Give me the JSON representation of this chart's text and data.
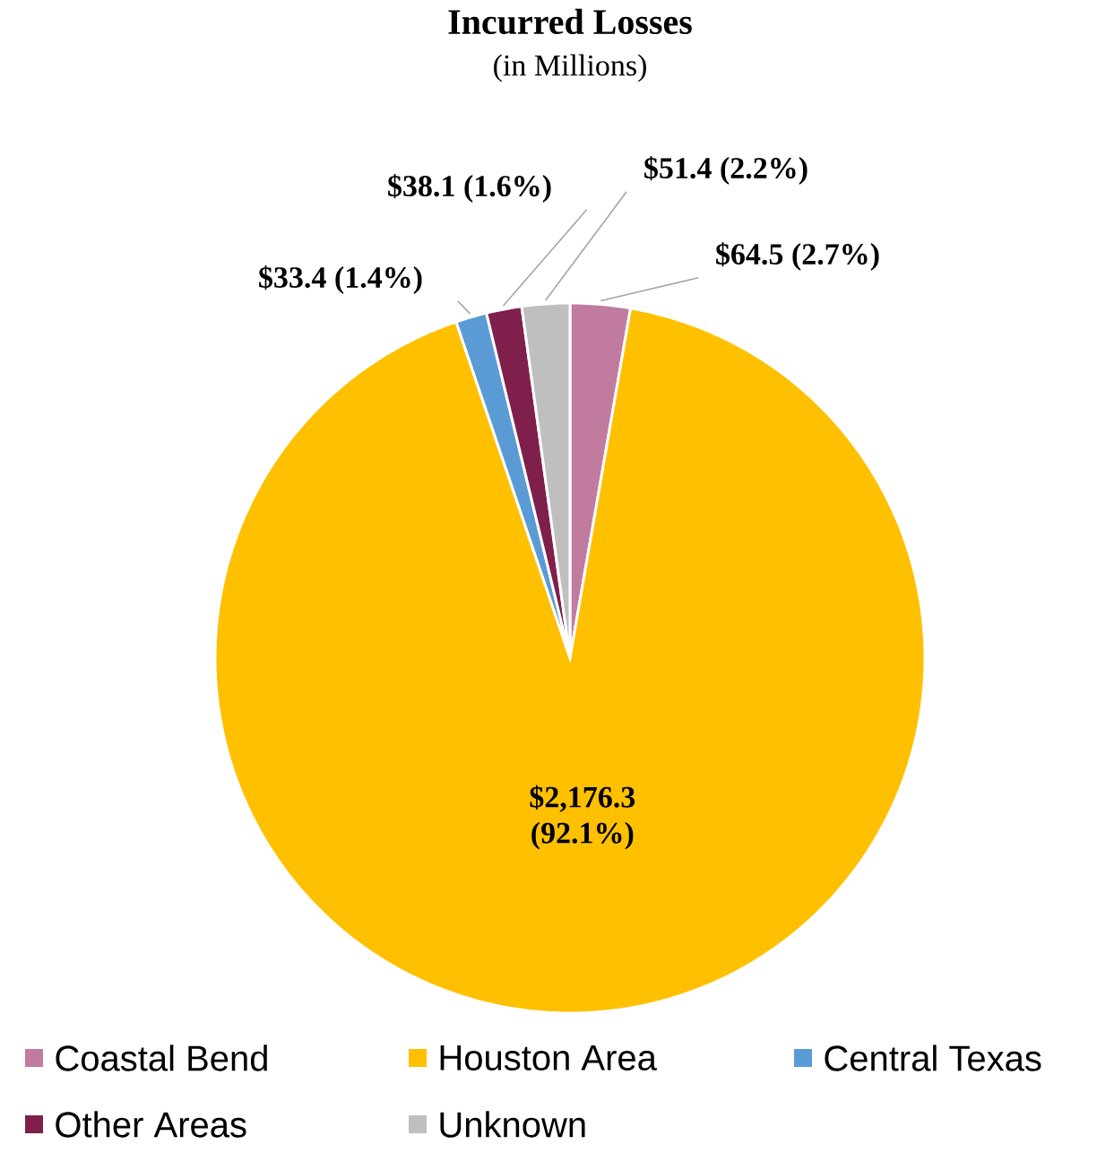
{
  "chart_data": {
    "type": "pie",
    "title": "Incurred Losses",
    "subtitle": "(in Millions)",
    "categories": [
      "Coastal Bend",
      "Houston Area",
      "Central Texas",
      "Other Areas",
      "Unknown"
    ],
    "values": [
      64.5,
      2176.3,
      33.4,
      38.1,
      51.4
    ],
    "colors": [
      "#c07b9f",
      "#ffc000",
      "#5b9bd5",
      "#7f1f4b",
      "#bfbfbf"
    ],
    "value_labels": [
      "$64.5 (2.7%)",
      "$2,176.3 (92.1%)",
      "$33.4 (1.4%)",
      "$38.1 (1.6%)",
      "$51.4 (2.2%)"
    ],
    "legend": "bottom"
  }
}
